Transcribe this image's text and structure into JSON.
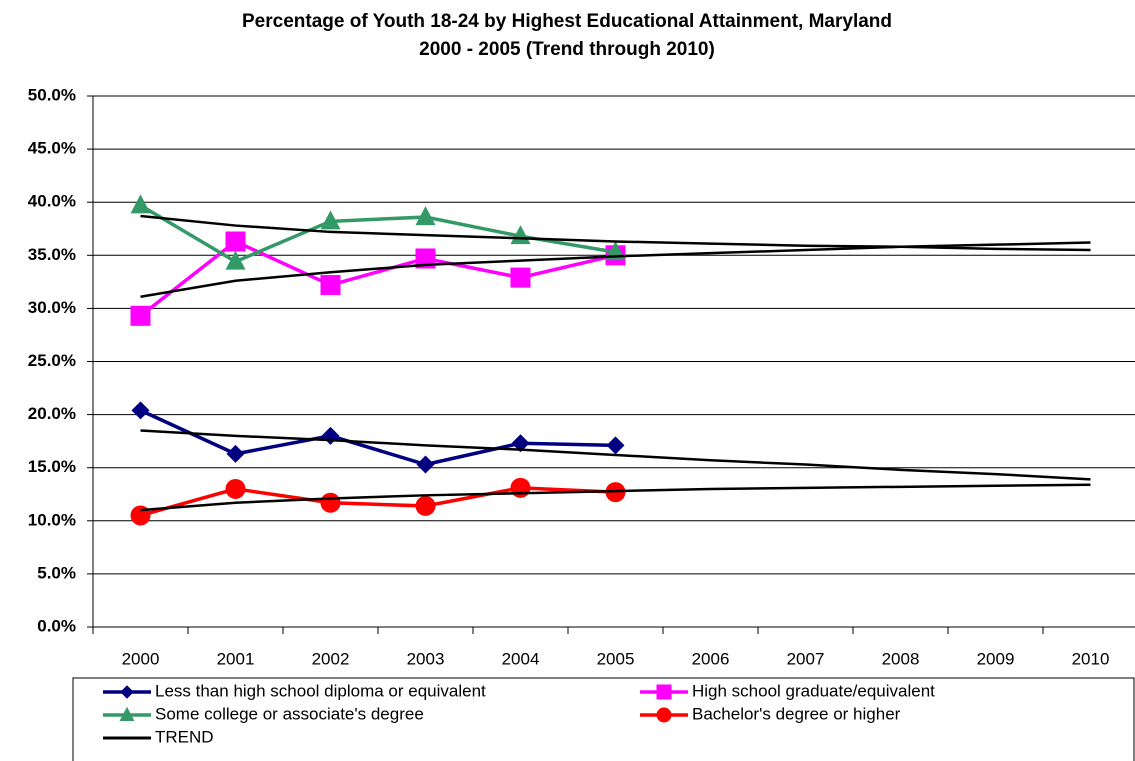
{
  "chart_data": {
    "type": "line",
    "title": "Percentage of Youth 18-24 by Highest Educational Attainment, Maryland",
    "subtitle": "2000 - 2005 (Trend through 2010)",
    "categories": [
      "2000",
      "2001",
      "2002",
      "2003",
      "2004",
      "2005",
      "2006",
      "2007",
      "2008",
      "2009",
      "2010"
    ],
    "series": [
      {
        "name": "Less than high school diploma or equivalent",
        "color": "#000080",
        "marker": "diamond",
        "values": [
          20.4,
          16.3,
          18.0,
          15.3,
          17.3,
          17.1,
          null,
          null,
          null,
          null,
          null
        ]
      },
      {
        "name": "High school graduate/equivalent",
        "color": "#ff00ff",
        "marker": "square",
        "values": [
          29.3,
          36.3,
          32.2,
          34.7,
          32.9,
          35.0,
          null,
          null,
          null,
          null,
          null
        ]
      },
      {
        "name": "Some college or associate's degree",
        "color": "#339966",
        "marker": "triangle",
        "values": [
          39.7,
          34.4,
          38.2,
          38.6,
          36.8,
          35.3,
          null,
          null,
          null,
          null,
          null
        ]
      },
      {
        "name": "Bachelor's degree or higher",
        "color": "#ff0000",
        "marker": "circle",
        "values": [
          10.5,
          13.0,
          11.7,
          11.4,
          13.1,
          12.7,
          null,
          null,
          null,
          null,
          null
        ]
      }
    ],
    "trend": {
      "name": "TREND",
      "color": "#000000",
      "lines": [
        [
          18.5,
          18.0,
          17.6,
          17.1,
          16.7,
          16.2,
          15.7,
          15.3,
          14.8,
          14.4,
          13.9
        ],
        [
          31.1,
          32.6,
          33.4,
          34.1,
          34.5,
          34.9,
          35.2,
          35.5,
          35.8,
          36.0,
          36.2
        ],
        [
          38.7,
          37.8,
          37.2,
          36.9,
          36.6,
          36.3,
          36.1,
          35.9,
          35.8,
          35.6,
          35.5
        ],
        [
          11.0,
          11.7,
          12.1,
          12.4,
          12.6,
          12.8,
          13.0,
          13.1,
          13.2,
          13.3,
          13.4
        ]
      ]
    },
    "ylim": [
      0,
      50
    ],
    "yticks": [
      {
        "value": 0,
        "label": "0.0%"
      },
      {
        "value": 5,
        "label": "5.0%"
      },
      {
        "value": 10,
        "label": "10.0%"
      },
      {
        "value": 15,
        "label": "15.0%"
      },
      {
        "value": 20,
        "label": "20.0%"
      },
      {
        "value": 25,
        "label": "25.0%"
      },
      {
        "value": 30,
        "label": "30.0%"
      },
      {
        "value": 35,
        "label": "35.0%"
      },
      {
        "value": 40,
        "label": "40.0%"
      },
      {
        "value": 45,
        "label": "45.0%"
      },
      {
        "value": 50,
        "label": "50.0%"
      }
    ],
    "grid": true,
    "legend": "bottom"
  }
}
